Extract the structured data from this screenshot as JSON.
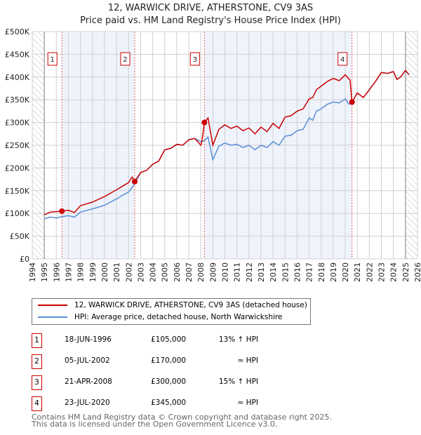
{
  "title": "12, WARWICK DRIVE, ATHERSTONE, CV9 3AS",
  "subtitle": "Price paid vs. HM Land Registry's House Price Index (HPI)",
  "chart_data": {
    "type": "line",
    "xlim": [
      1994,
      2026
    ],
    "ylim": [
      0,
      500000
    ],
    "x_ticks": [
      "1994",
      "1995",
      "1996",
      "1997",
      "1998",
      "1999",
      "2000",
      "2001",
      "2002",
      "2003",
      "2004",
      "2005",
      "2006",
      "2007",
      "2008",
      "2009",
      "2010",
      "2011",
      "2012",
      "2013",
      "2014",
      "2015",
      "2016",
      "2017",
      "2018",
      "2019",
      "2020",
      "2021",
      "2022",
      "2023",
      "2024",
      "2025",
      "2026"
    ],
    "y_ticks": [
      "£0",
      "£50K",
      "£100K",
      "£150K",
      "£200K",
      "£250K",
      "£300K",
      "£350K",
      "£400K",
      "£450K",
      "£500K"
    ],
    "series": [
      {
        "name": "12, WARWICK DRIVE, ATHERSTONE, CV9 3AS (detached house)",
        "color": "#cc0000",
        "points": [
          [
            1995,
            97
          ],
          [
            1995.5,
            103
          ],
          [
            1996,
            104
          ],
          [
            1996.46,
            105
          ],
          [
            1997,
            107
          ],
          [
            1997.5,
            102
          ],
          [
            1998,
            117
          ],
          [
            1999,
            125
          ],
          [
            2000,
            137
          ],
          [
            2001,
            152
          ],
          [
            2001.5,
            160
          ],
          [
            2002,
            168
          ],
          [
            2002.3,
            180
          ],
          [
            2002.51,
            170
          ],
          [
            2003,
            190
          ],
          [
            2003.5,
            195
          ],
          [
            2004,
            208
          ],
          [
            2004.5,
            215
          ],
          [
            2005,
            240
          ],
          [
            2005.5,
            243
          ],
          [
            2006,
            252
          ],
          [
            2006.5,
            250
          ],
          [
            2007,
            262
          ],
          [
            2007.5,
            265
          ],
          [
            2008,
            250
          ],
          [
            2008.1,
            260
          ],
          [
            2008.3,
            300
          ],
          [
            2008.6,
            310
          ],
          [
            2009,
            250
          ],
          [
            2009.5,
            285
          ],
          [
            2010,
            295
          ],
          [
            2010.5,
            287
          ],
          [
            2011,
            292
          ],
          [
            2011.5,
            282
          ],
          [
            2012,
            288
          ],
          [
            2012.5,
            275
          ],
          [
            2013,
            290
          ],
          [
            2013.5,
            280
          ],
          [
            2014,
            298
          ],
          [
            2014.5,
            287
          ],
          [
            2015,
            312
          ],
          [
            2015.5,
            315
          ],
          [
            2016,
            325
          ],
          [
            2016.5,
            330
          ],
          [
            2017,
            352
          ],
          [
            2017.3,
            355
          ],
          [
            2017.6,
            372
          ],
          [
            2018,
            380
          ],
          [
            2018.5,
            390
          ],
          [
            2019,
            397
          ],
          [
            2019.5,
            392
          ],
          [
            2020,
            405
          ],
          [
            2020.4,
            393
          ],
          [
            2020.56,
            345
          ],
          [
            2021,
            365
          ],
          [
            2021.5,
            355
          ],
          [
            2022,
            372
          ],
          [
            2022.5,
            390
          ],
          [
            2023,
            410
          ],
          [
            2023.5,
            408
          ],
          [
            2024,
            412
          ],
          [
            2024.3,
            395
          ],
          [
            2024.6,
            400
          ],
          [
            2025,
            415
          ],
          [
            2025.3,
            405
          ]
        ]
      },
      {
        "name": "HPI: Average price, detached house, North Warwickshire",
        "color": "#5b8fd6",
        "points": [
          [
            1995,
            88
          ],
          [
            1995.5,
            92
          ],
          [
            1996,
            90
          ],
          [
            1996.46,
            93
          ],
          [
            1997,
            95
          ],
          [
            1997.5,
            92
          ],
          [
            1998,
            103
          ],
          [
            1999,
            110
          ],
          [
            2000,
            118
          ],
          [
            2001,
            132
          ],
          [
            2001.5,
            140
          ],
          [
            2002,
            147
          ],
          [
            2002.51,
            165
          ],
          [
            2003,
            190
          ],
          [
            2003.5,
            195
          ],
          [
            2004,
            208
          ],
          [
            2004.5,
            215
          ],
          [
            2005,
            240
          ],
          [
            2005.5,
            243
          ],
          [
            2006,
            252
          ],
          [
            2006.5,
            250
          ],
          [
            2007,
            262
          ],
          [
            2007.5,
            265
          ],
          [
            2008,
            258
          ],
          [
            2008.3,
            260
          ],
          [
            2008.6,
            268
          ],
          [
            2009,
            218
          ],
          [
            2009.5,
            248
          ],
          [
            2010,
            255
          ],
          [
            2010.5,
            250
          ],
          [
            2011,
            252
          ],
          [
            2011.5,
            245
          ],
          [
            2012,
            250
          ],
          [
            2012.5,
            240
          ],
          [
            2013,
            250
          ],
          [
            2013.5,
            245
          ],
          [
            2014,
            258
          ],
          [
            2014.5,
            250
          ],
          [
            2015,
            270
          ],
          [
            2015.5,
            272
          ],
          [
            2016,
            282
          ],
          [
            2016.5,
            285
          ],
          [
            2017,
            310
          ],
          [
            2017.3,
            305
          ],
          [
            2017.6,
            325
          ],
          [
            2018,
            330
          ],
          [
            2018.5,
            340
          ],
          [
            2019,
            345
          ],
          [
            2019.5,
            343
          ],
          [
            2020,
            352
          ],
          [
            2020.3,
            340
          ],
          [
            2020.56,
            345
          ],
          [
            2021,
            365
          ],
          [
            2021.5,
            355
          ],
          [
            2022,
            372
          ],
          [
            2022.5,
            390
          ],
          [
            2023,
            410
          ],
          [
            2023.5,
            408
          ],
          [
            2024,
            412
          ],
          [
            2024.3,
            395
          ],
          [
            2024.6,
            400
          ],
          [
            2025,
            415
          ],
          [
            2025.3,
            405
          ]
        ]
      }
    ],
    "y_units": "thousands GBP",
    "sales": [
      {
        "label": "1",
        "x": 1996.46,
        "y": 105
      },
      {
        "label": "2",
        "x": 2002.51,
        "y": 170
      },
      {
        "label": "3",
        "x": 2008.3,
        "y": 300
      },
      {
        "label": "4",
        "x": 2020.56,
        "y": 345
      }
    ],
    "shaded_ranges": [
      [
        1996.46,
        2002.51
      ],
      [
        2008.3,
        2020.56
      ]
    ],
    "hatched_ranges": [
      [
        1994,
        1995
      ],
      [
        2025,
        2026
      ]
    ],
    "grid": true
  },
  "legend": {
    "red": "12, WARWICK DRIVE, ATHERSTONE, CV9 3AS (detached house)",
    "blue": "HPI: Average price, detached house, North Warwickshire"
  },
  "transactions": [
    {
      "num": "1",
      "date": "18-JUN-1996",
      "price": "£105,000",
      "hpi": "13% ↑ HPI"
    },
    {
      "num": "2",
      "date": "05-JUL-2002",
      "price": "£170,000",
      "hpi": "≈ HPI"
    },
    {
      "num": "3",
      "date": "21-APR-2008",
      "price": "£300,000",
      "hpi": "15% ↑ HPI"
    },
    {
      "num": "4",
      "date": "23-JUL-2020",
      "price": "£345,000",
      "hpi": "≈ HPI"
    }
  ],
  "footer": [
    "Contains HM Land Registry data © Crown copyright and database right 2025.",
    "This data is licensed under the Open Government Licence v3.0."
  ]
}
